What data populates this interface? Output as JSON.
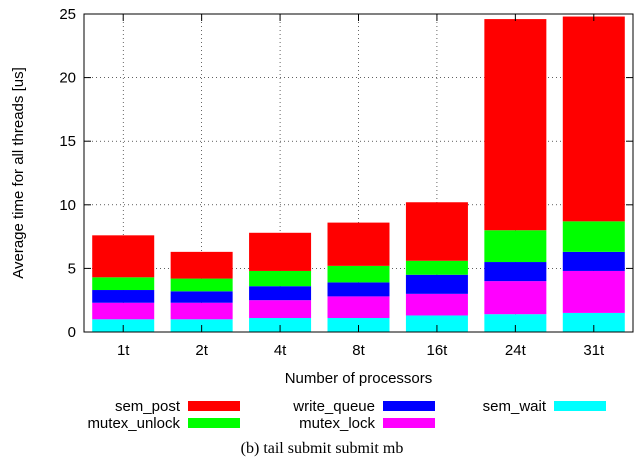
{
  "caption": "(b) tail submit submit mb",
  "chart_data": {
    "type": "bar",
    "stacked": true,
    "categories": [
      "1t",
      "2t",
      "4t",
      "8t",
      "16t",
      "24t",
      "31t"
    ],
    "xlabel": "Number of processors",
    "ylabel": "Average time for all threads [us]",
    "ylim": [
      0,
      25
    ],
    "yticks": [
      0,
      5,
      10,
      15,
      20,
      25
    ],
    "grid": true,
    "legend_position": "bottom",
    "series": [
      {
        "name": "sem_wait",
        "color": "#00ffff",
        "values": [
          1.0,
          1.0,
          1.1,
          1.1,
          1.3,
          1.4,
          1.5
        ]
      },
      {
        "name": "mutex_lock",
        "color": "#ff00ff",
        "values": [
          1.3,
          1.3,
          1.4,
          1.7,
          1.7,
          2.6,
          3.3
        ]
      },
      {
        "name": "write_queue",
        "color": "#0000ff",
        "values": [
          1.0,
          0.9,
          1.1,
          1.1,
          1.5,
          1.5,
          1.5
        ]
      },
      {
        "name": "mutex_unlock",
        "color": "#00ff00",
        "values": [
          1.0,
          1.0,
          1.2,
          1.3,
          1.1,
          2.5,
          2.4
        ]
      },
      {
        "name": "sem_post",
        "color": "#ff0000",
        "values": [
          3.3,
          2.1,
          3.0,
          3.4,
          4.6,
          16.6,
          16.1
        ]
      }
    ]
  }
}
